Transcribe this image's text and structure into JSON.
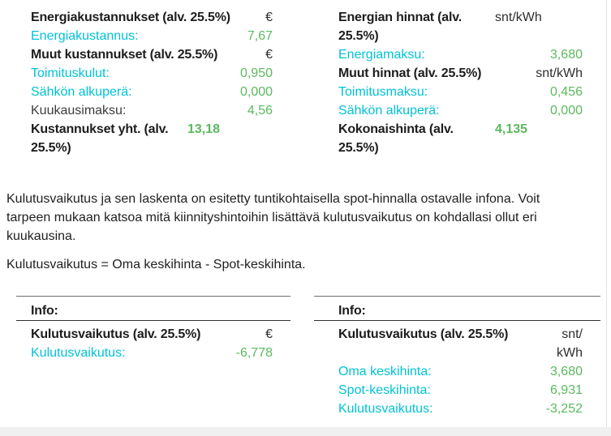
{
  "colors": {
    "link": "#00c2d6",
    "value": "#5bb95e",
    "heading": "#1d1d1d",
    "body": "#2e2e2e",
    "muted": "#3c3c3c",
    "footer_bg": "#f0f0f0",
    "border_dark": "#2f2f2f",
    "border_mid": "#6f6f6f",
    "gutter_line": "#e3e3e3"
  },
  "top_left_table": {
    "rows": [
      {
        "label": "Energiakustannukset (alv. 25.5%)",
        "value": "€",
        "label_style": "bold",
        "value_style": "unit"
      },
      {
        "label": "Energiakustannus:",
        "value": "7,67",
        "label_style": "link",
        "value_style": "green"
      },
      {
        "label": "Muut kustannukset (alv. 25.5%)",
        "value": "€",
        "label_style": "bold",
        "value_style": "unit"
      },
      {
        "label": "Toimituskulut:",
        "value": "0,950",
        "label_style": "link",
        "value_style": "green"
      },
      {
        "label": "Sähkön alkuperä:",
        "value": "0,000",
        "label_style": "link",
        "value_style": "green"
      },
      {
        "label": "Kuukausimaksu:",
        "value": "4,56",
        "label_style": "plain",
        "value_style": "green"
      },
      {
        "label": "Kustannukset yht. (alv. 25.5%)",
        "value": "13,18",
        "label_style": "bold",
        "value_style": "green-bold",
        "wrap": true
      }
    ]
  },
  "top_right_table": {
    "rows": [
      {
        "label": "Energian hinnat (alv. 25.5%)",
        "value": "snt/kWh",
        "label_style": "bold",
        "value_style": "unit",
        "wrap": true
      },
      {
        "label": "Energiamaksu:",
        "value": "3,680",
        "label_style": "link",
        "value_style": "green"
      },
      {
        "label": "Muut hinnat (alv. 25.5%)",
        "value": "snt/kWh",
        "label_style": "bold",
        "value_style": "unit"
      },
      {
        "label": "Toimitusmaksu:",
        "value": "0,456",
        "label_style": "link",
        "value_style": "green"
      },
      {
        "label": "Sähkön alkuperä:",
        "value": "0,000",
        "label_style": "link",
        "value_style": "green"
      },
      {
        "label": "Kokonaishinta (alv. 25.5%)",
        "value": "4,135",
        "label_style": "bold",
        "value_style": "green-bold",
        "wrap": true
      }
    ]
  },
  "info_text": {
    "paragraph": "Kulutusvaikutus ja sen laskenta on esitetty tuntikohtaisella spot-hinnalla ostavalle infona. Voit tarpeen mukaan katsoa mitä kiinnityshintoihin lisättävä kulutusvaikutus on kohdallasi ollut eri kuukausina.",
    "formula": "Kulutusvaikutus = Oma keskihinta - Spot-keskihinta."
  },
  "bottom_left_table": {
    "header": "Info:",
    "rows": [
      {
        "label": "Kulutusvaikutus (alv. 25.5%)",
        "value": "€",
        "label_style": "bold",
        "value_style": "unit"
      },
      {
        "label": "Kulutusvaikutus:",
        "value": "-6,778",
        "label_style": "link",
        "value_style": "green"
      }
    ]
  },
  "bottom_right_table": {
    "header": "Info:",
    "rows": [
      {
        "label": "Kulutusvaikutus (alv. 25.5%)",
        "value": "snt/kWh",
        "label_style": "bold",
        "value_style": "unit"
      },
      {
        "label": "Oma keskihinta:",
        "value": "3,680",
        "label_style": "link",
        "value_style": "green"
      },
      {
        "label": "Spot-keskihinta:",
        "value": "6,931",
        "label_style": "link",
        "value_style": "green"
      },
      {
        "label": "Kulutusvaikutus:",
        "value": "-3,252",
        "label_style": "link",
        "value_style": "green"
      }
    ]
  }
}
